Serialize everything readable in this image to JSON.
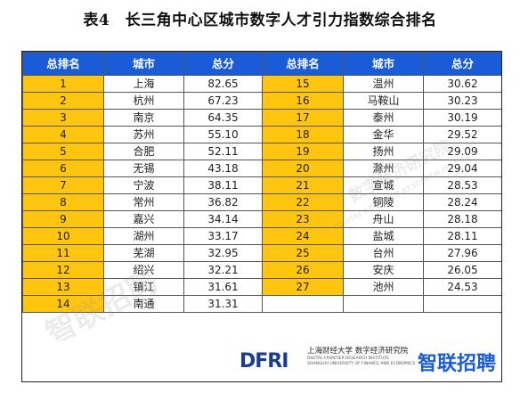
{
  "title": "表4　长三角中心区城市数字人才引力指数综合排名",
  "headers": [
    "总排名",
    "城市",
    "总分",
    "总排名",
    "城市",
    "总分"
  ],
  "rows": [
    {
      "r1": "1",
      "c1": "上海",
      "s1": "82.65",
      "r2": "15",
      "c2": "温州",
      "s2": "30.62"
    },
    {
      "r1": "2",
      "c1": "杭州",
      "s1": "67.23",
      "r2": "16",
      "c2": "马鞍山",
      "s2": "30.23"
    },
    {
      "r1": "3",
      "c1": "南京",
      "s1": "64.35",
      "r2": "17",
      "c2": "泰州",
      "s2": "30.19"
    },
    {
      "r1": "4",
      "c1": "苏州",
      "s1": "55.10",
      "r2": "18",
      "c2": "金华",
      "s2": "29.52"
    },
    {
      "r1": "5",
      "c1": "合肥",
      "s1": "52.11",
      "r2": "19",
      "c2": "扬州",
      "s2": "29.09"
    },
    {
      "r1": "6",
      "c1": "无锡",
      "s1": "43.18",
      "r2": "20",
      "c2": "滁州",
      "s2": "29.04"
    },
    {
      "r1": "7",
      "c1": "宁波",
      "s1": "38.11",
      "r2": "21",
      "c2": "宣城",
      "s2": "28.53"
    },
    {
      "r1": "8",
      "c1": "常州",
      "s1": "36.82",
      "r2": "22",
      "c2": "铜陵",
      "s2": "28.24"
    },
    {
      "r1": "9",
      "c1": "嘉兴",
      "s1": "34.14",
      "r2": "23",
      "c2": "舟山",
      "s2": "28.18"
    },
    {
      "r1": "10",
      "c1": "湖州",
      "s1": "33.17",
      "r2": "24",
      "c2": "盐城",
      "s2": "28.11"
    },
    {
      "r1": "11",
      "c1": "芜湖",
      "s1": "32.95",
      "r2": "25",
      "c2": "台州",
      "s2": "27.96"
    },
    {
      "r1": "12",
      "c1": "绍兴",
      "s1": "32.21",
      "r2": "26",
      "c2": "安庆",
      "s2": "26.05"
    },
    {
      "r1": "13",
      "c1": "镇江",
      "s1": "31.61",
      "r2": "27",
      "c2": "池州",
      "s2": "24.53"
    },
    {
      "r1": "14",
      "c1": "南通",
      "s1": "31.31",
      "r2": "",
      "c2": "",
      "s2": ""
    }
  ],
  "footer": {
    "dfri_logo": "DFRI",
    "institute_cn": "上海财经大学 数字经济研究院",
    "institute_en1": "DIGITAL FRONTIER RESEARCH INSTITUTE",
    "institute_en2": "SHANGHAI UNIVERSITY OF FINANCE AND ECONOMICS",
    "zhaopin": "智联招聘"
  },
  "watermarks": [
    "智联招聘",
    "数字经济研究院",
    "DIGITAL FRONTIER RESEARCH INSTITUTE"
  ],
  "colors": {
    "header_bg": "#1a5cd8",
    "rank_bg": "#ffc50f",
    "zhaopin_blue": "#1a5cd8",
    "dfri_navy": "#1a3e8f"
  }
}
